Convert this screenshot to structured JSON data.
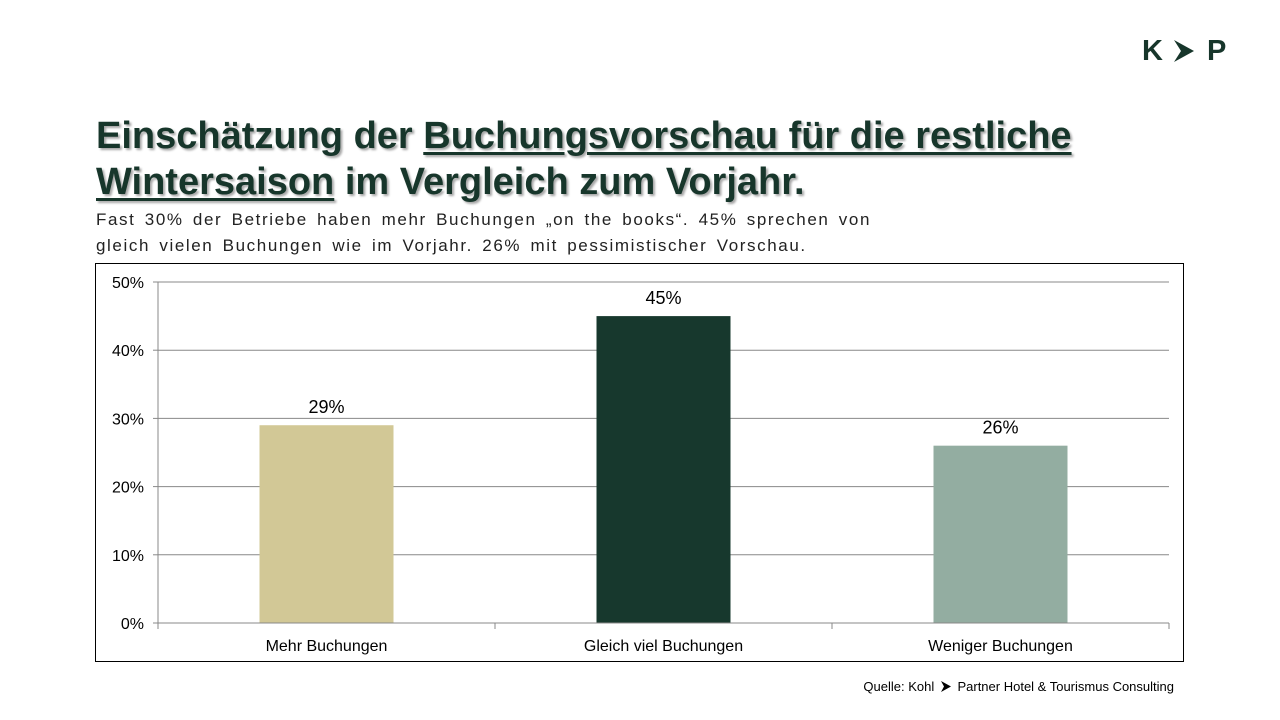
{
  "logo": {
    "left": "K",
    "right": "P",
    "icon": "chevron-right-icon"
  },
  "header": {
    "title_part1": "Einschätzung der ",
    "title_part2_underlined": "Buchungsvorschau für die restliche Wintersaison",
    "title_part3": " im Vergleich zum Vorjahr.",
    "subtitle_line1": "Fast 30% der Betriebe haben mehr Buchungen „on the books“. 45% sprechen von",
    "subtitle_line2": "gleich vielen Buchungen wie im Vorjahr. 26% mit pessimistischer Vorschau."
  },
  "colors": {
    "brand_dark": "#17362b",
    "bar_mehr": "#d2c896",
    "bar_gleich": "#17382d",
    "bar_weniger": "#93ada1"
  },
  "chart_data": {
    "type": "bar",
    "categories": [
      "Mehr Buchungen",
      "Gleich viel Buchungen",
      "Weniger Buchungen"
    ],
    "values": [
      29,
      45,
      26
    ],
    "data_labels": [
      "29%",
      "45%",
      "26%"
    ],
    "ylim": [
      0,
      50
    ],
    "yticks": [
      0,
      10,
      20,
      30,
      40,
      50
    ],
    "ytick_labels": [
      "0%",
      "10%",
      "20%",
      "30%",
      "40%",
      "50%"
    ],
    "grid": true,
    "legend": "none",
    "xlabel": "",
    "ylabel": ""
  },
  "footer": {
    "source_prefix": "Quelle: Kohl",
    "source_suffix": "Partner Hotel & Tourismus Consulting"
  }
}
